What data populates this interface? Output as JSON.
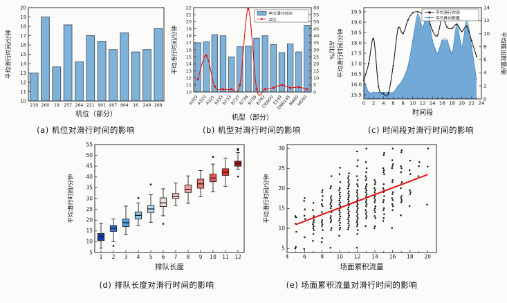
{
  "colors": {
    "bar_fill": "#7fb2d9",
    "bar_edge": "#3c4f66",
    "red": "#e41414",
    "area_fill": "#73a9d7",
    "area_edge": "#4a86c2",
    "black_line": "#1a1a1a",
    "scatter_dot": "#111111",
    "frame": "#2a2a2a"
  },
  "chart_data": [
    {
      "id": "a",
      "type": "bar",
      "caption": "(a) 机位对滑行时间的影响",
      "xlabel": "机位（部分）",
      "ylabel": "平均滑行时间/分钟",
      "categories": [
        "219",
        "260",
        "19",
        "257",
        "264",
        "221",
        "901",
        "907",
        "904",
        "16",
        "249",
        "269"
      ],
      "values": [
        13.0,
        19.0,
        13.65,
        18.15,
        14.2,
        17.0,
        16.4,
        15.5,
        17.3,
        15.25,
        15.5,
        17.75
      ],
      "ylim": [
        10,
        20
      ],
      "ystep": 1
    },
    {
      "id": "b",
      "type": "bar+line",
      "caption": "(b) 机型对滑行时间的影响",
      "xlabel": "机型（部分）",
      "ylabel": "平均滑行时间/分钟",
      "y2label": "占比/%",
      "categories": [
        "A319",
        "A320",
        "A321",
        "A333",
        "B733",
        "B737",
        "B738",
        "B739",
        "B763",
        "CRJ900",
        "E190",
        "EMB145",
        "MA60",
        "MD90"
      ],
      "legend": [
        "平均滑行时间",
        "占比"
      ],
      "series": [
        {
          "name": "平均滑行时间",
          "type": "bar",
          "axis": "left",
          "values": [
            17.0,
            17.15,
            18.15,
            18.0,
            15.0,
            16.45,
            16.55,
            17.65,
            18.0,
            16.75,
            15.6,
            16.85,
            15.7,
            19.5
          ]
        },
        {
          "name": "占比",
          "type": "line",
          "axis": "right",
          "values": [
            9,
            26,
            4,
            2,
            2,
            5,
            59,
            2,
            2,
            3,
            5,
            3,
            3.5,
            2
          ]
        }
      ],
      "ylim": [
        10,
        22
      ],
      "ystep": 1,
      "y2lim": [
        0,
        60
      ],
      "y2step": 5
    },
    {
      "id": "c",
      "type": "line+area",
      "caption": "(c) 时间段对滑行时间的影响",
      "xlabel": "时间段",
      "ylabel": "平均滑行时间/分钟",
      "y2label": "平均推出数量/架",
      "legend": [
        "平均滑行时间",
        "平均推出数量"
      ],
      "x": [
        0,
        1,
        2,
        3,
        4,
        5,
        6,
        7,
        8,
        9,
        10,
        11,
        12,
        13,
        14,
        15,
        16,
        17,
        18,
        19,
        20,
        21,
        22,
        23
      ],
      "series": [
        {
          "name": "平均滑行时间",
          "axis": "left",
          "values": [
            16.2,
            17.0,
            18.2,
            15.9,
            15.55,
            15.55,
            16.9,
            18.7,
            18.45,
            19.1,
            19.45,
            19.5,
            19.4,
            19.3,
            18.6,
            18.35,
            19.2,
            18.75,
            18.7,
            18.9,
            18.55,
            18.8,
            18.1,
            17.35
          ]
        },
        {
          "name": "平均推出数量",
          "axis": "right",
          "values": [
            3,
            1,
            1,
            1,
            1,
            1,
            1,
            2,
            3,
            5,
            9,
            13,
            11,
            13,
            9,
            7,
            9,
            9,
            7,
            11.5,
            8,
            12,
            8,
            3
          ]
        }
      ],
      "xlim": [
        0,
        24
      ],
      "xstep": 2,
      "ylim": [
        15.3,
        19.7
      ],
      "yticks": [
        15.5,
        16.0,
        16.5,
        17.0,
        17.5,
        18.0,
        18.5,
        19.0,
        19.5
      ],
      "y2lim": [
        0,
        14
      ],
      "y2step": 2
    },
    {
      "id": "d",
      "type": "box",
      "caption": "(d) 排队长度对滑行时间的影响",
      "xlabel": "排队长度",
      "ylabel": "平均滑行时间/分钟",
      "categories": [
        "1",
        "2",
        "3",
        "4",
        "5",
        "6",
        "7",
        "8",
        "9",
        "10",
        "11",
        "12"
      ],
      "ylim": [
        5,
        55
      ],
      "ystep": 5,
      "boxes": [
        {
          "low": 7.0,
          "q1": 10.5,
          "median": 12.3,
          "q3": 13.8,
          "high": 18.5,
          "outliers": [],
          "color": "#1b3aa5"
        },
        {
          "low": 10.0,
          "q1": 14.8,
          "median": 16.2,
          "q3": 17.5,
          "high": 20.5,
          "outliers": [
            8.0
          ],
          "color": "#2d72d8"
        },
        {
          "low": 13.2,
          "q1": 17.0,
          "median": 18.8,
          "q3": 20.5,
          "high": 26.5,
          "outliers": [],
          "color": "#55a0e0"
        },
        {
          "low": 17.5,
          "q1": 20.5,
          "median": 22.2,
          "q3": 23.8,
          "high": 28.0,
          "outliers": [
            30.2
          ],
          "color": "#8ac2ea"
        },
        {
          "low": 19.0,
          "q1": 23.5,
          "median": 25.2,
          "q3": 26.8,
          "high": 31.8,
          "outliers": [
            36.5
          ],
          "color": "#b4d8f0"
        },
        {
          "low": 22.0,
          "q1": 26.3,
          "median": 28.0,
          "q3": 30.3,
          "high": 34.5,
          "outliers": [
            18.3
          ],
          "color": "#f4dede"
        },
        {
          "low": 26.8,
          "q1": 30.0,
          "median": 31.0,
          "q3": 32.3,
          "high": 37.2,
          "outliers": [],
          "color": "#f6c6c6"
        },
        {
          "low": 27.8,
          "q1": 32.8,
          "median": 34.3,
          "q3": 36.3,
          "high": 40.5,
          "outliers": [],
          "color": "#f0a2a2"
        },
        {
          "low": 30.8,
          "q1": 34.8,
          "median": 36.8,
          "q3": 39.0,
          "high": 43.0,
          "outliers": [],
          "color": "#e87c7c"
        },
        {
          "low": 33.2,
          "q1": 37.8,
          "median": 39.5,
          "q3": 41.3,
          "high": 46.0,
          "outliers": [
            49.3
          ],
          "color": "#e25b5b"
        },
        {
          "low": 35.7,
          "q1": 40.7,
          "median": 42.2,
          "q3": 43.8,
          "high": 48.7,
          "outliers": [],
          "color": "#ec2f2f"
        },
        {
          "low": 43.6,
          "q1": 45.0,
          "median": 46.2,
          "q3": 47.3,
          "high": 51.3,
          "outliers": [
            40.2,
            52.5,
            53.0
          ],
          "color": "#b3111b"
        }
      ]
    },
    {
      "id": "e",
      "type": "scatter",
      "caption": "(e) 场面累积流量对滑行时间的影响",
      "xlabel": "场面累积流量",
      "ylabel": "平均滑行时间/分钟",
      "xlim": [
        4,
        21
      ],
      "xticks": [
        4,
        6,
        8,
        10,
        12,
        14,
        16,
        18,
        20
      ],
      "ylim": [
        4,
        31
      ],
      "yticks": [
        5,
        10,
        15,
        20,
        25,
        30
      ],
      "clusters": [
        {
          "x": 5,
          "ys": [
            5.0,
            5.4,
            9.2,
            11.2,
            12.8,
            13.1
          ]
        },
        {
          "x": 6,
          "ys": [
            4.9,
            7.8,
            12.4,
            13.2,
            14.8,
            16.9,
            17.6
          ]
        },
        {
          "x": 7,
          "ys": [
            6.9,
            8.6,
            9.6,
            10.1,
            10.6,
            11.1,
            11.6,
            12.1,
            12.6,
            13.1,
            14.6,
            16.4
          ]
        },
        {
          "x": 8,
          "ys": [
            6.6,
            7.6,
            9.6,
            10.6,
            11.1,
            11.6,
            12.1,
            13.6,
            14.1,
            15.6,
            16.1,
            17.1,
            18.1,
            19.1,
            19.6
          ]
        },
        {
          "x": 9,
          "ys": [
            5.2,
            9.6,
            10.1,
            11.6,
            12.1,
            12.6,
            13.1,
            14.1,
            15.1,
            15.6,
            16.1,
            16.6,
            17.1,
            17.6,
            18.1,
            20.1,
            20.6,
            23.1
          ]
        },
        {
          "x": 10,
          "ys": [
            8.2,
            9.8,
            10.2,
            10.8,
            11.4,
            12.0,
            12.5,
            13.0,
            13.5,
            14.0,
            14.5,
            15.0,
            15.5,
            16.0,
            16.5,
            17.0,
            17.5,
            18.0,
            18.5,
            19.0,
            19.6,
            20.1,
            21.6,
            23.6,
            25.2
          ]
        },
        {
          "x": 11,
          "ys": [
            9.8,
            10.3,
            10.8,
            11.3,
            11.8,
            12.3,
            12.8,
            13.3,
            13.8,
            14.3,
            14.8,
            15.3,
            15.8,
            16.3,
            16.8,
            17.3,
            17.8,
            18.3,
            18.8,
            19.3,
            20.0,
            20.6,
            21.1,
            21.6,
            22.1,
            22.6,
            23.1,
            23.8
          ]
        },
        {
          "x": 12,
          "ys": [
            5.2,
            8.6,
            9.6,
            10.6,
            11.1,
            11.6,
            12.1,
            12.6,
            13.1,
            13.6,
            14.1,
            14.6,
            15.1,
            15.6,
            16.1,
            16.6,
            17.1,
            17.6,
            18.1,
            18.6,
            19.1,
            19.6,
            20.6,
            21.1,
            22.1,
            23.1,
            25.6,
            27.1,
            29.3
          ]
        },
        {
          "x": 13,
          "ys": [
            10.6,
            12.6,
            13.1,
            13.6,
            14.1,
            14.6,
            15.6,
            16.1,
            16.6,
            17.1,
            17.6,
            18.1,
            18.6,
            19.1,
            19.6,
            20.1,
            20.6,
            21.1,
            22.1,
            22.6,
            23.1,
            24.1,
            25.1,
            26.6,
            30.0
          ]
        },
        {
          "x": 14,
          "ys": [
            10.1,
            10.6,
            12.6,
            13.1,
            14.1,
            14.6,
            15.1,
            15.6,
            16.6,
            17.1,
            17.6,
            18.1,
            18.6,
            19.1,
            19.6,
            20.1,
            21.1,
            21.6,
            22.1
          ]
        },
        {
          "x": 15,
          "ys": [
            11.9,
            12.6,
            13.6,
            14.6,
            15.1,
            16.6,
            17.1,
            18.1,
            19.1,
            19.6,
            20.1,
            21.1,
            23.6,
            24.1,
            24.6,
            25.1,
            28.4,
            28.9
          ]
        },
        {
          "x": 16,
          "ys": [
            10.1,
            14.6,
            15.6,
            16.1,
            17.1,
            17.6,
            18.6,
            19.1,
            21.6,
            22.1,
            25.1,
            25.6,
            26.1,
            27.1,
            30.0
          ]
        },
        {
          "x": 17,
          "ys": [
            13.3,
            16.6,
            17.1,
            17.6,
            18.1,
            20.1,
            21.1,
            21.6,
            24.1,
            25.1,
            25.6,
            29.1,
            29.6
          ]
        },
        {
          "x": 18,
          "ys": [
            15.6,
            18.6,
            19.1,
            19.6,
            23.6,
            24.6,
            27.0
          ]
        },
        {
          "x": 19,
          "ys": [
            23.1,
            25.6,
            26.6
          ]
        },
        {
          "x": 20,
          "ys": [
            16.0,
            25.5,
            30.0
          ]
        }
      ],
      "trend": {
        "x1": 5,
        "y1": 11.0,
        "x2": 20,
        "y2": 23.5
      }
    }
  ]
}
